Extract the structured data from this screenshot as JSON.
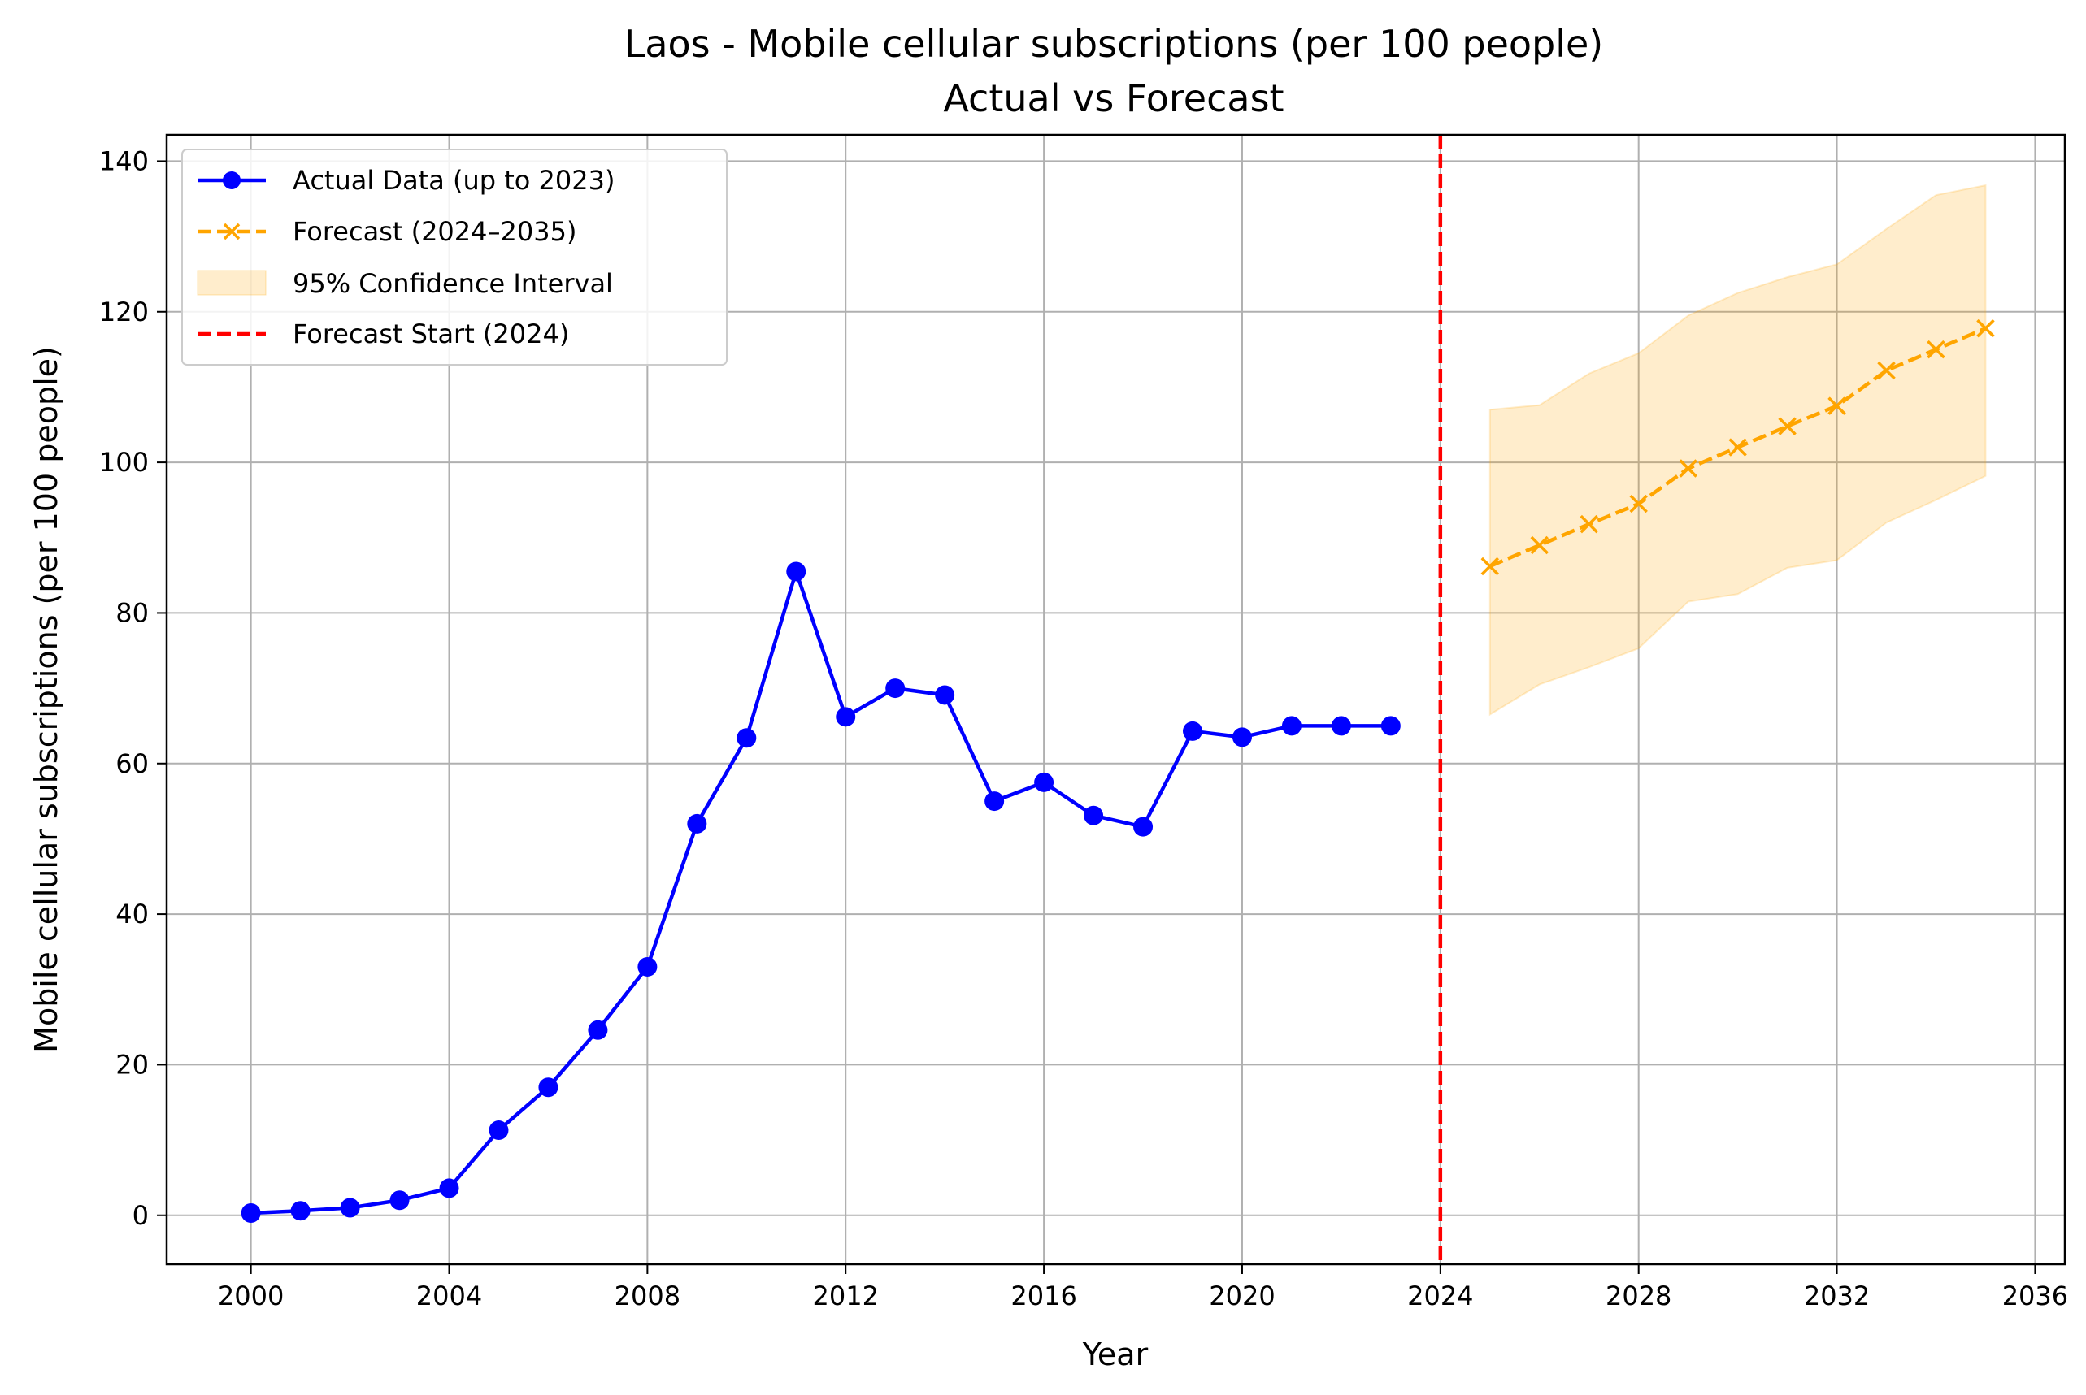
{
  "colors": {
    "actual": "#0000ff",
    "forecast": "#ffa500",
    "ci_fill": "#ffa500",
    "forecast_start": "#ff0000",
    "grid": "#b0b0b0"
  },
  "chart_data": {
    "type": "line",
    "title": [
      "Laos - Mobile cellular subscriptions (per 100 people)",
      "Actual vs Forecast"
    ],
    "xlabel": "Year",
    "ylabel": "Mobile cellular subscriptions (per 100 people)",
    "xlim": [
      1998.3,
      2036.6
    ],
    "ylim": [
      -6.5,
      143.5
    ],
    "xticks": [
      2000,
      2004,
      2008,
      2012,
      2016,
      2020,
      2024,
      2028,
      2032,
      2036
    ],
    "yticks": [
      0,
      20,
      40,
      60,
      80,
      100,
      120,
      140
    ],
    "grid": true,
    "legend_position": "upper-left",
    "series": [
      {
        "name": "Actual Data (up to 2023)",
        "style": "solid-circle",
        "x": [
          2000,
          2001,
          2002,
          2003,
          2004,
          2005,
          2006,
          2007,
          2008,
          2009,
          2010,
          2011,
          2012,
          2013,
          2014,
          2015,
          2016,
          2017,
          2018,
          2019,
          2020,
          2021,
          2022,
          2023
        ],
        "y": [
          0.3,
          0.6,
          1.0,
          2.0,
          3.6,
          11.3,
          17.0,
          24.6,
          33.0,
          52.0,
          63.4,
          85.5,
          66.2,
          70.0,
          69.1,
          55.0,
          57.5,
          53.1,
          51.6,
          64.3,
          63.5,
          65.0,
          65.0,
          65.0
        ]
      },
      {
        "name": "Forecast (2024–2035)",
        "style": "dashed-x",
        "x": [
          2025,
          2026,
          2027,
          2028,
          2029,
          2030,
          2031,
          2032,
          2033,
          2034,
          2035
        ],
        "y": [
          86.2,
          89.0,
          91.8,
          94.5,
          99.2,
          102.0,
          104.8,
          107.5,
          112.2,
          115.0,
          117.8
        ]
      }
    ],
    "confidence_interval": {
      "name": "95% Confidence Interval",
      "x": [
        2025,
        2026,
        2027,
        2028,
        2029,
        2030,
        2031,
        2032,
        2033,
        2034,
        2035
      ],
      "lower": [
        66.5,
        70.5,
        72.8,
        75.3,
        81.5,
        82.5,
        86.0,
        87.0,
        92.0,
        95.0,
        98.2
      ],
      "upper": [
        107.0,
        107.6,
        111.8,
        114.5,
        119.5,
        122.5,
        124.6,
        126.3,
        131.0,
        135.5,
        136.8
      ]
    },
    "forecast_start": {
      "name": "Forecast Start (2024)",
      "x": 2024
    }
  }
}
